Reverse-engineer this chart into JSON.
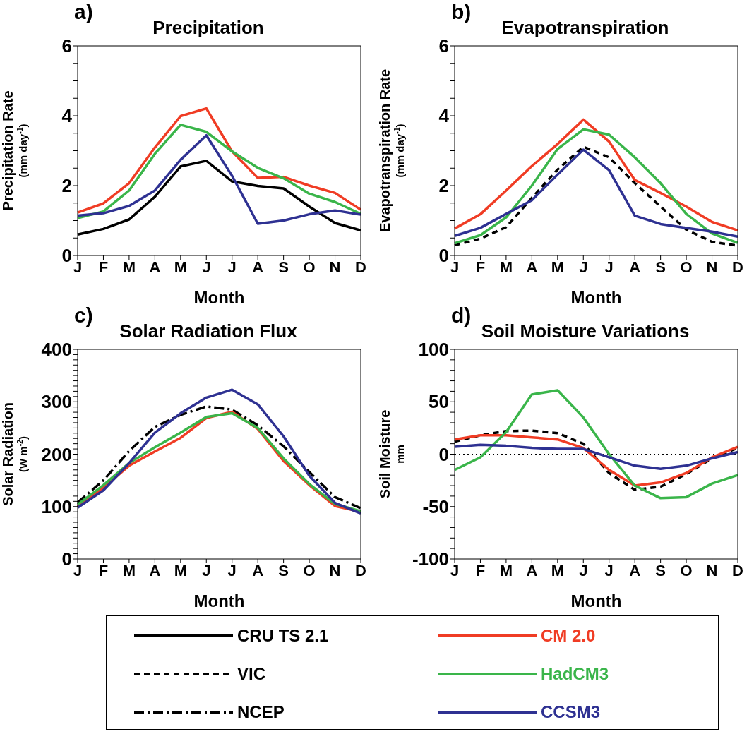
{
  "chart_data": [
    {
      "type": "line",
      "title": "Precipitation",
      "annotations": [
        "a)"
      ],
      "xlabel": "Month",
      "ylabel": "Precipitation Rate\n(mm day$^{-1}$)",
      "legend": "bottom",
      "categories": [
        "J",
        "F",
        "M",
        "A",
        "M",
        "J",
        "J",
        "A",
        "S",
        "O",
        "N",
        "D"
      ],
      "ylim": [
        0,
        6
      ],
      "yticks": [
        0,
        {
          "value": 0.5,
          "label": null
        },
        {
          "value": 1,
          "label": null
        },
        {
          "value": 1.5,
          "label": null
        },
        2,
        {
          "value": 2.5,
          "label": null
        },
        {
          "value": 3,
          "label": null
        },
        {
          "value": 3.5,
          "label": null
        },
        4,
        {
          "value": 4.5,
          "label": null
        },
        {
          "value": 5,
          "label": null
        },
        {
          "value": 5.5,
          "label": null
        },
        6
      ],
      "series": [
        {
          "name": "CRU TS 2.1",
          "color": "#000000",
          "line_style": "solid",
          "values": [
            0.6,
            0.76,
            1.03,
            1.68,
            2.55,
            2.71,
            2.12,
            1.99,
            1.92,
            1.4,
            0.93,
            0.72
          ]
        },
        {
          "color": "#f03c24",
          "line_style": "solid",
          "values": [
            1.23,
            1.49,
            2.07,
            3.09,
            3.99,
            4.21,
            2.98,
            2.22,
            2.25,
            2.0,
            1.79,
            1.31
          ]
        },
        {
          "color": "#3ab54a",
          "line_style": "solid",
          "values": [
            1.07,
            1.26,
            1.86,
            2.91,
            3.74,
            3.54,
            2.98,
            2.51,
            2.21,
            1.77,
            1.53,
            1.19
          ]
        },
        {
          "color": "#2e3192",
          "line_style": "solid",
          "values": [
            1.14,
            1.21,
            1.42,
            1.86,
            2.74,
            3.44,
            2.28,
            0.91,
            1.0,
            1.18,
            1.29,
            1.17
          ]
        }
      ]
    },
    {
      "type": "line",
      "title": "Evapotranspiration",
      "annotations": [
        "b)"
      ],
      "xlabel": "Month",
      "ylabel": "Evapotranspiration Rate\n(mm day$^{-1}$)",
      "legend": "bottom",
      "categories": [
        "J",
        "F",
        "M",
        "A",
        "M",
        "J",
        "J",
        "A",
        "S",
        "O",
        "N",
        "D"
      ],
      "ylim": [
        0,
        6
      ],
      "yticks": [
        0,
        {
          "value": 0.5,
          "label": null
        },
        {
          "value": 1,
          "label": null
        },
        {
          "value": 1.5,
          "label": null
        },
        2,
        {
          "value": 2.5,
          "label": null
        },
        {
          "value": 3,
          "label": null
        },
        {
          "value": 3.5,
          "label": null
        },
        4,
        {
          "value": 4.5,
          "label": null
        },
        {
          "value": 5,
          "label": null
        },
        {
          "value": 5.5,
          "label": null
        },
        6
      ],
      "series": [
        {
          "name": "VIC",
          "color": "#000000",
          "line_style": "dashed",
          "values": [
            0.29,
            0.48,
            0.81,
            1.65,
            2.46,
            3.11,
            2.81,
            2.07,
            1.4,
            0.74,
            0.39,
            0.28
          ]
        },
        {
          "color": "#f03c24",
          "line_style": "solid",
          "values": [
            0.77,
            1.18,
            1.86,
            2.56,
            3.19,
            3.89,
            3.26,
            2.16,
            1.79,
            1.4,
            0.96,
            0.72
          ]
        },
        {
          "color": "#3ab54a",
          "line_style": "solid",
          "values": [
            0.35,
            0.58,
            1.09,
            2.0,
            3.05,
            3.61,
            3.46,
            2.81,
            2.07,
            1.19,
            0.63,
            0.36
          ]
        },
        {
          "color": "#2e3192",
          "line_style": "solid",
          "values": [
            0.56,
            0.79,
            1.19,
            1.58,
            2.32,
            3.03,
            2.44,
            1.14,
            0.9,
            0.79,
            0.68,
            0.54
          ]
        }
      ]
    },
    {
      "type": "line",
      "title": "Solar Radiation Flux",
      "annotations": [
        "c)"
      ],
      "xlabel": "Month",
      "ylabel": "Solar Radiation\n(W m$^{-2}$)",
      "legend": "bottom",
      "categories": [
        "J",
        "F",
        "M",
        "A",
        "M",
        "J",
        "J",
        "A",
        "S",
        "O",
        "N",
        "D"
      ],
      "ylim": [
        0,
        400
      ],
      "yticks": [
        0,
        {
          "value": 10,
          "label": null
        },
        {
          "value": 20,
          "label": null
        },
        {
          "value": 30,
          "label": null
        },
        {
          "value": 40,
          "label": null
        },
        {
          "value": 50,
          "label": null
        },
        {
          "value": 60,
          "label": null
        },
        {
          "value": 70,
          "label": null
        },
        {
          "value": 80,
          "label": null
        },
        {
          "value": 90,
          "label": null
        },
        100,
        {
          "value": 110,
          "label": null
        },
        {
          "value": 120,
          "label": null
        },
        {
          "value": 130,
          "label": null
        },
        {
          "value": 140,
          "label": null
        },
        {
          "value": 150,
          "label": null
        },
        {
          "value": 160,
          "label": null
        },
        {
          "value": 170,
          "label": null
        },
        {
          "value": 180,
          "label": null
        },
        {
          "value": 190,
          "label": null
        },
        200,
        {
          "value": 210,
          "label": null
        },
        {
          "value": 220,
          "label": null
        },
        {
          "value": 230,
          "label": null
        },
        {
          "value": 240,
          "label": null
        },
        {
          "value": 250,
          "label": null
        },
        {
          "value": 260,
          "label": null
        },
        {
          "value": 270,
          "label": null
        },
        {
          "value": 280,
          "label": null
        },
        {
          "value": 290,
          "label": null
        },
        300,
        {
          "value": 310,
          "label": null
        },
        {
          "value": 320,
          "label": null
        },
        {
          "value": 330,
          "label": null
        },
        {
          "value": 340,
          "label": null
        },
        {
          "value": 350,
          "label": null
        },
        {
          "value": 360,
          "label": null
        },
        {
          "value": 370,
          "label": null
        },
        {
          "value": 380,
          "label": null
        },
        {
          "value": 390,
          "label": null
        },
        400
      ],
      "series": [
        {
          "name": "NCEP",
          "color": "#000000",
          "line_style": "dashdot",
          "values": [
            108,
            150,
            206,
            252,
            275,
            291,
            285,
            255,
            215,
            166,
            118,
            97
          ]
        },
        {
          "color": "#f03c24",
          "line_style": "solid",
          "values": [
            100,
            136,
            178,
            205,
            231,
            269,
            281,
            248,
            187,
            141,
            101,
            90
          ]
        },
        {
          "color": "#3ab54a",
          "line_style": "solid",
          "values": [
            104,
            141,
            183,
            213,
            241,
            271,
            278,
            250,
            192,
            143,
            105,
            91
          ]
        },
        {
          "color": "#2e3192",
          "line_style": "solid",
          "values": [
            98,
            131,
            183,
            241,
            278,
            308,
            323,
            295,
            234,
            159,
            107,
            87
          ]
        }
      ]
    },
    {
      "type": "line",
      "title": "Soil Moisture Variations",
      "annotations": [
        "d)"
      ],
      "xlabel": "Month",
      "ylabel": "Soil Moisture\nmm",
      "legend": "bottom",
      "categories": [
        "J",
        "F",
        "M",
        "A",
        "M",
        "J",
        "J",
        "A",
        "S",
        "O",
        "N",
        "D"
      ],
      "ylim": [
        -100,
        100
      ],
      "yticks": [
        -100,
        {
          "value": -90,
          "label": null
        },
        {
          "value": -80,
          "label": null
        },
        {
          "value": -70,
          "label": null
        },
        {
          "value": -60,
          "label": null
        },
        -50,
        {
          "value": -40,
          "label": null
        },
        {
          "value": -30,
          "label": null
        },
        {
          "value": -20,
          "label": null
        },
        {
          "value": -10,
          "label": null
        },
        0,
        {
          "value": 10,
          "label": null
        },
        {
          "value": 20,
          "label": null
        },
        {
          "value": 30,
          "label": null
        },
        {
          "value": 40,
          "label": null
        },
        50,
        {
          "value": 60,
          "label": null
        },
        {
          "value": 70,
          "label": null
        },
        {
          "value": 80,
          "label": null
        },
        {
          "value": 90,
          "label": null
        },
        100
      ],
      "ref_lines": [
        {
          "axis": "y",
          "value": 0,
          "color": "#000000",
          "line_style": "dotted"
        }
      ],
      "series": [
        {
          "color": "#000000",
          "line_style": "dashed",
          "values": [
            12,
            18,
            22,
            22.5,
            20,
            10,
            -18,
            -34,
            -31,
            -19,
            -4,
            6
          ]
        },
        {
          "name": "CM 2.0",
          "color": "#f03c24",
          "line_style": "solid",
          "values": [
            14,
            18,
            18,
            16,
            14,
            6,
            -15,
            -30,
            -27,
            -18,
            -3,
            7
          ]
        },
        {
          "name": "HadCM3",
          "color": "#3ab54a",
          "line_style": "solid",
          "values": [
            -15,
            -3,
            21,
            57,
            61,
            35,
            0,
            -30,
            -42,
            -41,
            -28,
            -20
          ]
        },
        {
          "name": "CCSM3",
          "color": "#2e3192",
          "line_style": "solid",
          "values": [
            7,
            9,
            8,
            6,
            5,
            5,
            -3,
            -11,
            -14,
            -11,
            -4,
            2
          ]
        }
      ]
    }
  ]
}
